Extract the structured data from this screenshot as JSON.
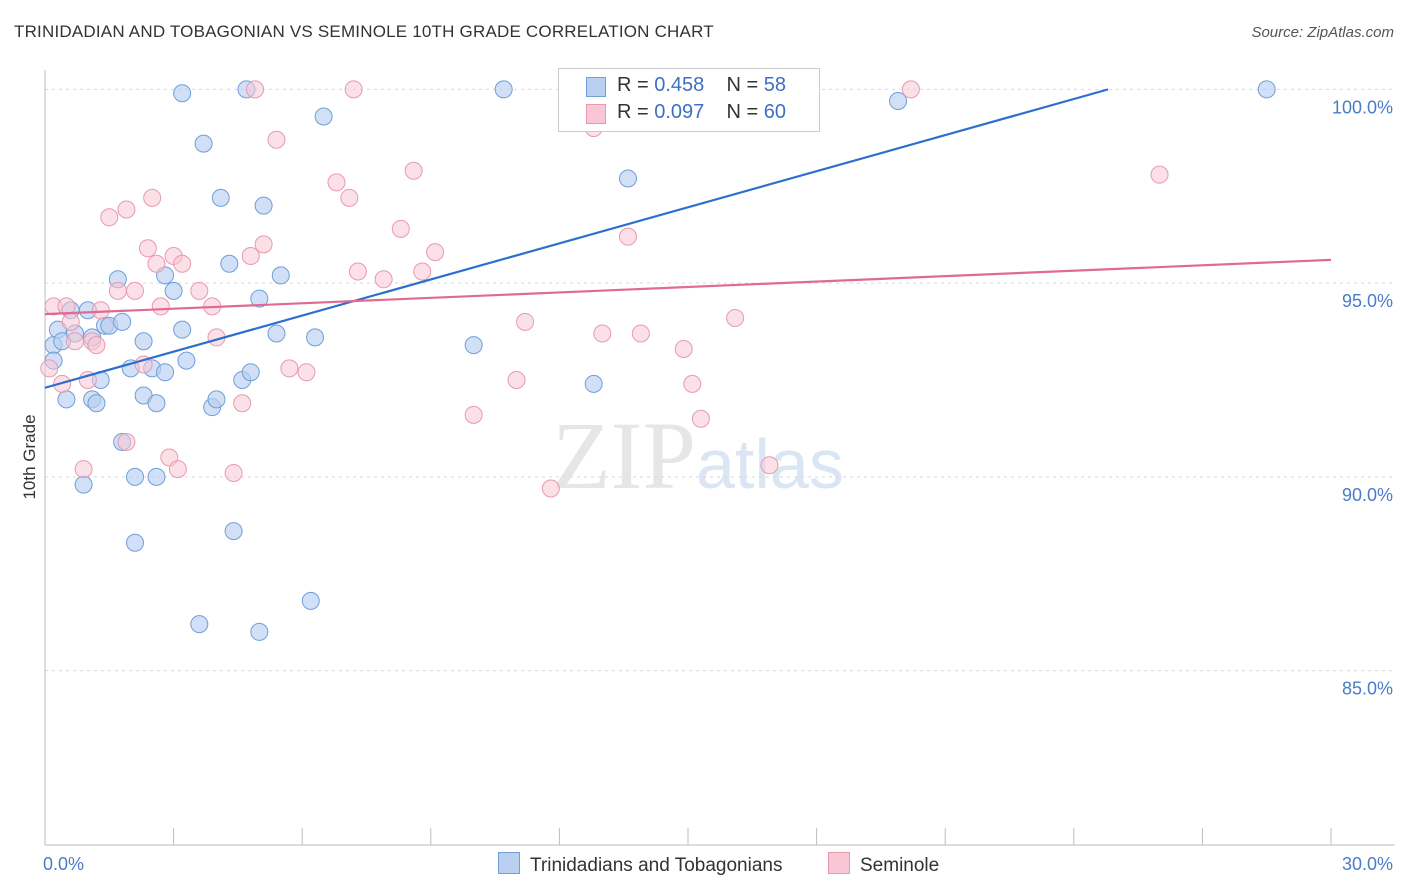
{
  "title": "TRINIDADIAN AND TOBAGONIAN VS SEMINOLE 10TH GRADE CORRELATION CHART",
  "source": "Source: ZipAtlas.com",
  "watermark": {
    "zip": "ZIP",
    "atlas": "atlas"
  },
  "legend": {
    "rows": [
      {
        "r_label": "R = ",
        "r_value": "0.458",
        "n_label": "N = ",
        "n_value": "58"
      },
      {
        "r_label": "R = ",
        "r_value": "0.097",
        "n_label": "N = ",
        "n_value": "60"
      }
    ]
  },
  "colors": {
    "blue_fill": "#b9d0f1",
    "blue_stroke": "#6f9fd8",
    "blue_line": "#2d6fcf",
    "pink_fill": "#f8c6d5",
    "pink_stroke": "#e89ab1",
    "pink_line": "#e06a94",
    "grid": "#d9d9d9",
    "tick_text": "#4a7cc8"
  },
  "chart_data": {
    "type": "scatter",
    "title": "TRINIDADIAN AND TOBAGONIAN VS SEMINOLE 10TH GRADE CORRELATION CHART",
    "xlabel": "",
    "ylabel": "10th Grade",
    "xlim": [
      0,
      30
    ],
    "ylim": [
      80.5,
      100.5
    ],
    "x_tick_labels": [
      "0.0%",
      "30.0%"
    ],
    "y_ticks": [
      85,
      90,
      95,
      100
    ],
    "y_tick_labels": [
      "85.0%",
      "90.0%",
      "95.0%",
      "100.0%"
    ],
    "grid": true,
    "legend_position": "top-center",
    "series": [
      {
        "name": "Trinidadians and Tobagonians",
        "color": "#b9d0f1",
        "trend": {
          "x": [
            0,
            24.8
          ],
          "y": [
            92.3,
            100.0
          ]
        },
        "points": [
          [
            0.2,
            93.4
          ],
          [
            0.2,
            93.0
          ],
          [
            0.3,
            93.8
          ],
          [
            0.4,
            93.5
          ],
          [
            0.5,
            92.0
          ],
          [
            0.6,
            94.3
          ],
          [
            0.7,
            93.7
          ],
          [
            0.9,
            89.8
          ],
          [
            1.0,
            94.3
          ],
          [
            1.1,
            93.6
          ],
          [
            1.1,
            92.0
          ],
          [
            1.2,
            91.9
          ],
          [
            1.3,
            92.5
          ],
          [
            1.4,
            93.9
          ],
          [
            1.5,
            93.9
          ],
          [
            1.7,
            95.1
          ],
          [
            1.8,
            94.0
          ],
          [
            1.8,
            90.9
          ],
          [
            2.0,
            92.8
          ],
          [
            2.1,
            90.0
          ],
          [
            2.1,
            88.3
          ],
          [
            2.3,
            92.1
          ],
          [
            2.3,
            93.5
          ],
          [
            2.5,
            92.8
          ],
          [
            2.6,
            90.0
          ],
          [
            2.6,
            91.9
          ],
          [
            2.8,
            95.2
          ],
          [
            2.8,
            92.7
          ],
          [
            3.0,
            94.8
          ],
          [
            3.2,
            93.8
          ],
          [
            3.3,
            93.0
          ],
          [
            3.6,
            86.2
          ],
          [
            3.7,
            98.6
          ],
          [
            3.9,
            91.8
          ],
          [
            4.0,
            92.0
          ],
          [
            4.1,
            97.2
          ],
          [
            4.3,
            95.5
          ],
          [
            4.4,
            88.6
          ],
          [
            4.6,
            92.5
          ],
          [
            4.8,
            92.7
          ],
          [
            5.0,
            94.6
          ],
          [
            5.1,
            97.0
          ],
          [
            5.4,
            93.7
          ],
          [
            5.5,
            95.2
          ],
          [
            6.2,
            86.8
          ],
          [
            6.3,
            93.6
          ],
          [
            6.5,
            99.3
          ],
          [
            3.2,
            99.9
          ],
          [
            4.7,
            100.0
          ],
          [
            5.0,
            86.0
          ],
          [
            10.0,
            93.4
          ],
          [
            10.7,
            100.0
          ],
          [
            12.8,
            92.4
          ],
          [
            13.6,
            97.7
          ],
          [
            19.9,
            99.7
          ],
          [
            28.5,
            100.0
          ]
        ]
      },
      {
        "name": "Seminole",
        "color": "#f8c6d5",
        "trend": {
          "x": [
            0,
            30
          ],
          "y": [
            94.2,
            95.6
          ]
        },
        "points": [
          [
            0.1,
            92.8
          ],
          [
            0.2,
            94.4
          ],
          [
            0.4,
            92.4
          ],
          [
            0.5,
            94.4
          ],
          [
            0.6,
            94.0
          ],
          [
            0.7,
            93.5
          ],
          [
            0.9,
            90.2
          ],
          [
            1.0,
            92.5
          ],
          [
            1.1,
            93.5
          ],
          [
            1.2,
            93.4
          ],
          [
            1.3,
            94.3
          ],
          [
            1.5,
            96.7
          ],
          [
            1.7,
            94.8
          ],
          [
            1.9,
            96.9
          ],
          [
            1.9,
            90.9
          ],
          [
            2.1,
            94.8
          ],
          [
            2.3,
            92.9
          ],
          [
            2.4,
            95.9
          ],
          [
            2.5,
            97.2
          ],
          [
            2.6,
            95.5
          ],
          [
            2.7,
            94.4
          ],
          [
            2.9,
            90.5
          ],
          [
            3.0,
            95.7
          ],
          [
            3.1,
            90.2
          ],
          [
            3.2,
            95.5
          ],
          [
            3.6,
            94.8
          ],
          [
            3.9,
            94.4
          ],
          [
            4.0,
            93.6
          ],
          [
            4.4,
            90.1
          ],
          [
            4.6,
            91.9
          ],
          [
            4.8,
            95.7
          ],
          [
            4.9,
            100.0
          ],
          [
            5.1,
            96.0
          ],
          [
            5.4,
            98.7
          ],
          [
            5.7,
            92.8
          ],
          [
            6.1,
            92.7
          ],
          [
            6.8,
            97.6
          ],
          [
            7.1,
            97.2
          ],
          [
            7.2,
            100.0
          ],
          [
            7.3,
            95.3
          ],
          [
            7.9,
            95.1
          ],
          [
            8.3,
            96.4
          ],
          [
            8.6,
            97.9
          ],
          [
            8.8,
            95.3
          ],
          [
            9.1,
            95.8
          ],
          [
            10.0,
            91.6
          ],
          [
            11.0,
            92.5
          ],
          [
            11.2,
            94.0
          ],
          [
            11.8,
            89.7
          ],
          [
            12.8,
            99.0
          ],
          [
            13.0,
            93.7
          ],
          [
            13.6,
            96.2
          ],
          [
            13.9,
            93.7
          ],
          [
            14.9,
            93.3
          ],
          [
            15.1,
            92.4
          ],
          [
            15.3,
            91.5
          ],
          [
            16.1,
            94.1
          ],
          [
            16.9,
            90.3
          ],
          [
            20.2,
            100.0
          ],
          [
            26.0,
            97.8
          ]
        ]
      }
    ]
  },
  "bottom_legend": [
    {
      "label": "Trinidadians and Tobagonians"
    },
    {
      "label": "Seminole"
    }
  ]
}
